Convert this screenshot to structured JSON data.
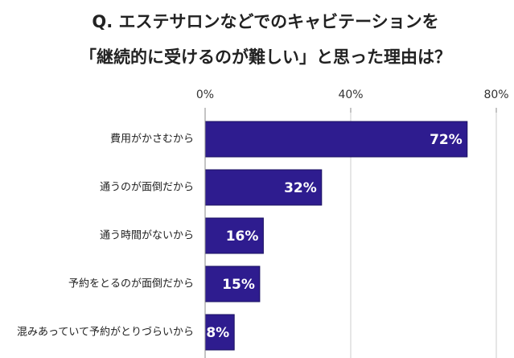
{
  "chart_data": {
    "type": "bar",
    "orientation": "horizontal",
    "title": [
      "Q. エステサロンなどでのキャビテーションを",
      "「継続的に受けるのが難しい」と思った理由は？"
    ],
    "categories": [
      "費用がかさむから",
      "通うのが面倒だから",
      "通う時間がないから",
      "予約をとるのが面倒だから",
      "混みあっていて予約がとりづらいから"
    ],
    "values": [
      72,
      32,
      16,
      15,
      8
    ],
    "value_labels": [
      "72%",
      "32%",
      "16%",
      "15%",
      "8%"
    ],
    "color": "#2e1c8f",
    "xlim": [
      0,
      80
    ],
    "xticks": [
      {
        "value": 0,
        "label": "0%"
      },
      {
        "value": 40,
        "label": "40%"
      },
      {
        "value": 80,
        "label": "80%"
      }
    ],
    "grid": true
  }
}
